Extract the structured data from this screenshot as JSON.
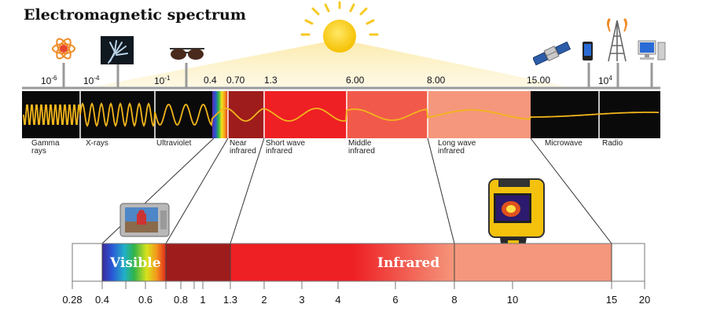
{
  "title": "Electromagnetic spectrum",
  "top_scale": [
    {
      "base": "10",
      "exp": "-6"
    },
    {
      "base": "10",
      "exp": "-4"
    },
    {
      "base": "10",
      "exp": "-1"
    },
    {
      "base": "0.4",
      "exp": ""
    },
    {
      "base": "0.70",
      "exp": ""
    },
    {
      "base": "1.3",
      "exp": ""
    },
    {
      "base": "6.00",
      "exp": ""
    },
    {
      "base": "8.00",
      "exp": ""
    },
    {
      "base": "15.00",
      "exp": ""
    },
    {
      "base": "10",
      "exp": "4"
    }
  ],
  "bands": [
    {
      "label": "Gamma\nrays"
    },
    {
      "label": "X-rays"
    },
    {
      "label": "Ultraviolet"
    },
    {
      "label": "Near\ninfrared"
    },
    {
      "label": "Short wave\ninfrared"
    },
    {
      "label": "Middle\ninfrared"
    },
    {
      "label": "Long wave\ninfrared"
    },
    {
      "label": "Microwave"
    },
    {
      "label": "Radio"
    }
  ],
  "bottom_bar": {
    "visible_label": "Visible",
    "infrared_label": "Infrared"
  },
  "bottom_scale": [
    "0.28",
    "0.4",
    "0.6",
    "0.8",
    "1",
    "1.3",
    "2",
    "3",
    "4",
    "6",
    "8",
    "10",
    "15",
    "20"
  ],
  "icons": [
    "atom-icon",
    "xray-hand-icon",
    "sunglasses-icon",
    "sun-icon",
    "satellite-icon",
    "mobile-phone-icon",
    "radio-tower-icon",
    "desktop-computer-icon",
    "camera-icon",
    "thermal-camera-icon"
  ],
  "colors": {
    "wave": "#f2b51c",
    "near_ir": "#9e1c1c",
    "short_ir": "#ee2024",
    "middle_ir": "#f15a4a",
    "long_ir": "#f5977c",
    "band_dark": "#0a0a0a"
  }
}
